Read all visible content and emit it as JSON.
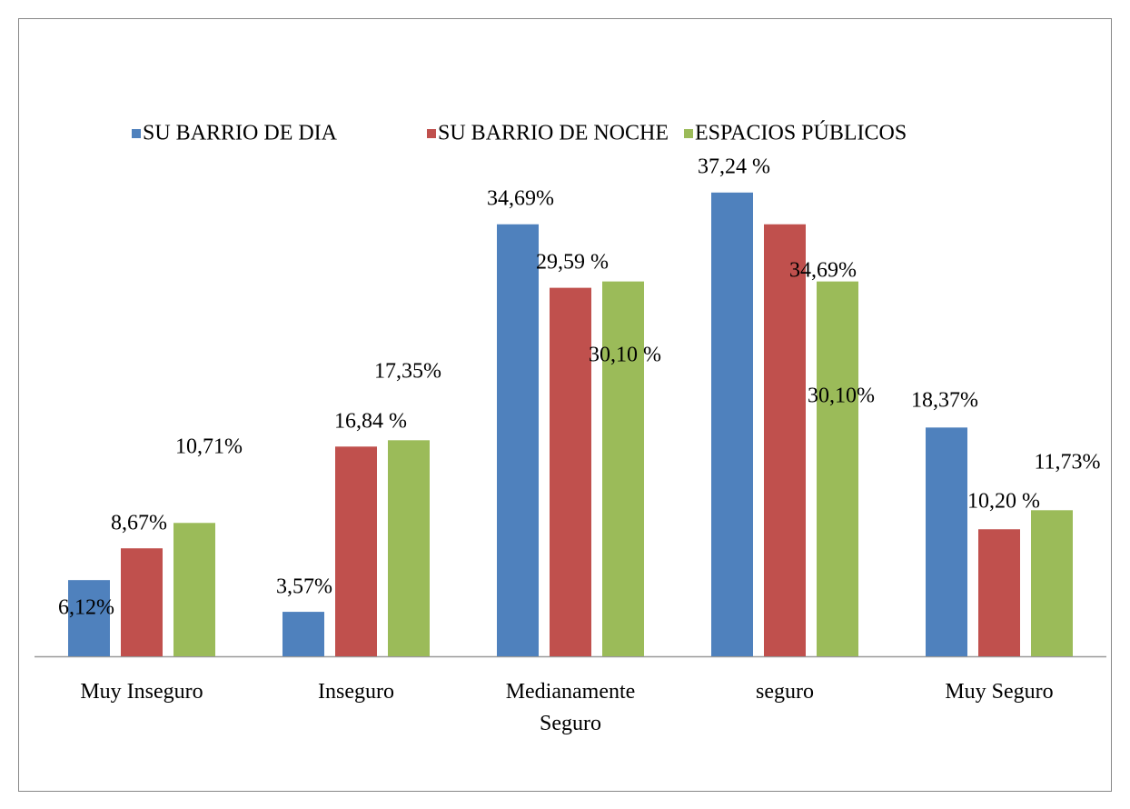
{
  "chart_data": {
    "type": "bar",
    "categories": [
      "Muy Inseguro",
      "Inseguro",
      "Medianamente Seguro",
      "seguro",
      "Muy Seguro"
    ],
    "series": [
      {
        "name": "SU BARRIO DE DIA",
        "color": "#4f81bd",
        "values": [
          6.12,
          3.57,
          34.69,
          37.24,
          18.37
        ],
        "value_labels": [
          "6,12%",
          "3,57%",
          "34,69%",
          "37,24 %",
          "18,37%"
        ]
      },
      {
        "name": "SU BARRIO DE NOCHE",
        "color": "#c0504d",
        "values": [
          8.67,
          16.84,
          29.59,
          34.69,
          10.2
        ],
        "value_labels": [
          "8,67%",
          "16,84 %",
          "29,59 %",
          "34,69%",
          "10,20 %"
        ]
      },
      {
        "name": "ESPACIOS PÚBLICOS",
        "color": "#9bbb59",
        "values": [
          10.71,
          17.35,
          30.1,
          30.1,
          11.73
        ],
        "value_labels": [
          "10,71%",
          "17,35%",
          "30,10 %",
          "30,10%",
          "11,73%"
        ]
      }
    ],
    "ylim": [
      0,
      40
    ],
    "legend": "top"
  }
}
